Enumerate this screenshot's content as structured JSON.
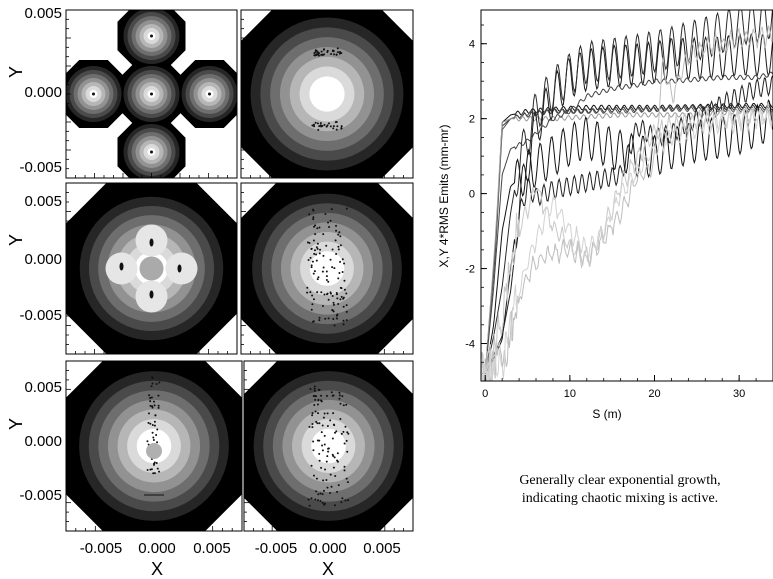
{
  "chart_data": [
    {
      "type": "heatmap",
      "panels": [
        {
          "id": "p1",
          "shape": "cross"
        },
        {
          "id": "p2",
          "shape": "round"
        },
        {
          "id": "p3",
          "shape": "clover"
        },
        {
          "id": "p4",
          "shape": "round"
        },
        {
          "id": "p5",
          "shape": "round"
        },
        {
          "id": "p6",
          "shape": "round"
        }
      ],
      "xlabel": "X",
      "ylabel": "Y",
      "x_ticks": [
        "-0.005",
        "0.000",
        "0.005"
      ],
      "y_ticks": [
        "0.005",
        "0.000",
        "-0.005"
      ],
      "xlim": [
        -0.008,
        0.008
      ],
      "ylim": [
        -0.0055,
        0.0055
      ],
      "colors": [
        "#000000",
        "#262626",
        "#4a4a4a",
        "#6e6e6e",
        "#929292",
        "#b6b6b6",
        "#dadada",
        "#ffffff"
      ]
    },
    {
      "type": "line",
      "xlabel": "S (m)",
      "ylabel": "X,Y 4*RMS Emits (mm-mr)",
      "x_ticks": [
        "0",
        "10",
        "20",
        "30"
      ],
      "y_ticks": [
        "4",
        "2",
        "0",
        "-2",
        "-4"
      ],
      "xlim": [
        -0.5,
        34
      ],
      "ylim": [
        -5.0,
        4.9
      ],
      "series": [
        {
          "color": "#111111",
          "x": [
            0,
            1.2,
            2,
            3,
            5,
            8,
            12,
            16,
            20,
            25,
            30,
            34
          ],
          "y": [
            -4.8,
            -1.5,
            1.9,
            2.1,
            2.2,
            2.25,
            2.3,
            2.3,
            2.3,
            2.32,
            2.35,
            2.35
          ]
        },
        {
          "color": "#333333",
          "x": [
            0,
            1.2,
            2,
            3,
            5,
            8,
            12,
            16,
            20,
            25,
            30,
            34
          ],
          "y": [
            -4.8,
            -1.4,
            1.8,
            2.0,
            2.1,
            2.2,
            2.2,
            2.25,
            2.25,
            2.3,
            2.3,
            2.3
          ]
        },
        {
          "color": "#555555",
          "x": [
            0,
            1.2,
            2,
            3,
            5,
            8,
            12,
            16,
            20,
            25,
            30,
            34
          ],
          "y": [
            -4.8,
            -1.6,
            1.7,
            2.0,
            2.15,
            2.2,
            2.2,
            2.2,
            2.25,
            2.25,
            2.25,
            2.25
          ]
        },
        {
          "color": "#9a9a9a",
          "x": [
            0,
            1.2,
            2,
            3,
            5,
            8,
            12,
            16,
            20,
            25,
            30,
            34
          ],
          "y": [
            -4.8,
            -1.2,
            1.9,
            2.0,
            2.0,
            2.0,
            2.05,
            2.1,
            2.1,
            2.1,
            2.2,
            2.2
          ]
        },
        {
          "color": "#1a1a1a",
          "x": [
            0,
            1,
            2,
            3,
            4,
            5,
            6,
            8,
            10,
            12,
            15,
            18,
            20,
            22,
            25,
            28,
            30,
            32,
            34
          ],
          "y": [
            -4.8,
            -4.4,
            -3.9,
            -2.0,
            -0.3,
            0.8,
            1.8,
            2.6,
            3.1,
            3.3,
            3.4,
            3.45,
            3.5,
            3.6,
            3.6,
            3.65,
            3.7,
            3.7,
            3.7
          ]
        },
        {
          "color": "#222222",
          "x": [
            0,
            1,
            2,
            3,
            4,
            5,
            6,
            8,
            10,
            12,
            14,
            16,
            18,
            20,
            22,
            24,
            26,
            28,
            30,
            32,
            34
          ],
          "y": [
            -4.8,
            -4.3,
            -3.8,
            -2.6,
            -0.6,
            0.2,
            -0.1,
            0.1,
            0.2,
            0.3,
            0.4,
            0.5,
            1.8,
            1.5,
            1.6,
            1.9,
            2.1,
            2.4,
            2.6,
            2.8,
            2.9
          ]
        },
        {
          "color": "#111111",
          "x": [
            0,
            1,
            2,
            3,
            5,
            8,
            10,
            12,
            15,
            18,
            20,
            22,
            25,
            28,
            30,
            32,
            34
          ],
          "y": [
            -4.8,
            -3.5,
            -1.0,
            0.2,
            0.6,
            1.0,
            1.3,
            1.5,
            1.2,
            1.0,
            1.0,
            1.2,
            1.4,
            1.5,
            1.6,
            1.8,
            2.0
          ]
        },
        {
          "color": "#444444",
          "x": [
            0,
            1,
            2,
            3,
            5,
            8,
            10,
            12,
            15,
            18,
            20,
            22,
            25,
            28,
            30,
            32,
            34
          ],
          "y": [
            -4.8,
            -2.5,
            0.5,
            1.2,
            1.4,
            2.0,
            2.2,
            2.6,
            2.8,
            2.9,
            3.0,
            3.0,
            3.05,
            3.1,
            3.1,
            3.1,
            3.2
          ]
        },
        {
          "color": "#2b2b2b",
          "x": [
            0,
            1,
            2,
            3,
            4,
            5,
            6,
            8,
            10,
            12,
            15,
            18,
            20,
            22,
            25,
            28,
            30,
            32,
            34
          ],
          "y": [
            -4.8,
            -3.8,
            -2.5,
            -0.5,
            0.8,
            1.5,
            2.2,
            2.8,
            3.2,
            3.5,
            3.6,
            3.7,
            3.8,
            3.9,
            4.1,
            4.3,
            4.5,
            4.6,
            4.7
          ]
        },
        {
          "color": "#bdbdbd",
          "x": [
            0,
            1,
            2,
            3,
            4,
            5,
            6,
            8,
            10,
            12,
            14,
            16,
            18,
            20,
            21,
            22,
            24,
            26,
            28,
            30,
            32,
            34
          ],
          "y": [
            -4.8,
            -4.6,
            -4.5,
            -3.8,
            -2.8,
            -2.2,
            -1.8,
            -1.6,
            -1.5,
            -1.7,
            -1.2,
            -0.5,
            0.4,
            0.8,
            3.5,
            2.6,
            3.7,
            3.9,
            4.0,
            4.1,
            4.2,
            4.2
          ]
        },
        {
          "color": "#c8c8c8",
          "x": [
            0,
            1,
            2,
            3,
            4,
            5,
            6,
            8,
            10,
            12,
            14,
            16,
            18,
            20,
            22,
            24,
            26,
            28,
            30,
            32,
            34
          ],
          "y": [
            -4.8,
            -4.2,
            -3.2,
            -2.0,
            -1.0,
            -0.4,
            0.2,
            -0.9,
            -1.4,
            -1.8,
            -1.0,
            0.2,
            1.0,
            1.6,
            1.8,
            1.9,
            2.0,
            2.0,
            2.05,
            2.1,
            2.1
          ]
        },
        {
          "color": "#d2d2d2",
          "x": [
            0,
            1,
            2,
            3,
            4,
            5,
            6,
            8,
            10,
            12,
            14,
            16,
            18,
            20,
            22,
            24,
            26,
            28,
            30,
            32,
            34
          ],
          "y": [
            -4.8,
            -4.7,
            -4.5,
            -3.5,
            -2.6,
            -1.8,
            -1.2,
            -0.2,
            -1.0,
            -1.5,
            -1.0,
            0.0,
            0.6,
            1.2,
            1.5,
            1.7,
            1.8,
            1.9,
            1.95,
            2.0,
            2.0
          ]
        }
      ]
    }
  ],
  "caption": {
    "line1": "Generally clear exponential growth,",
    "line2": "indicating chaotic mixing is active."
  }
}
